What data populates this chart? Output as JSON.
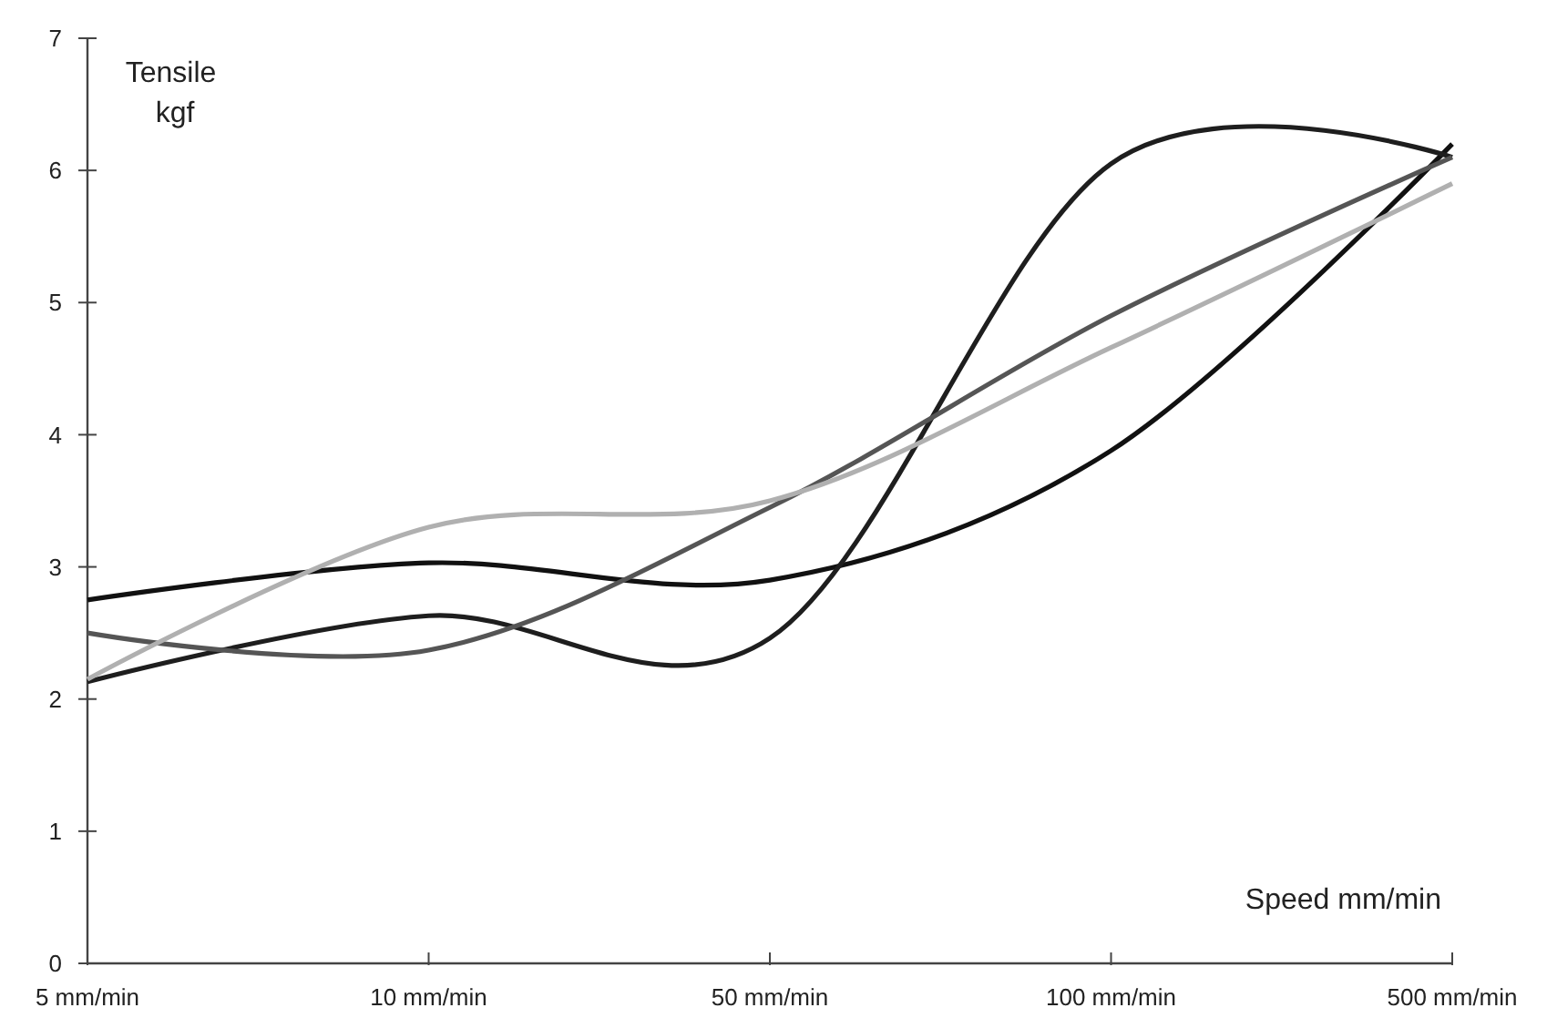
{
  "chart_data": {
    "type": "line",
    "xlabel": "Speed mm/min",
    "ylabel": "Tensile kgf",
    "categories": [
      "5 mm/min",
      "10 mm/min",
      "50 mm/min",
      "100 mm/min",
      "500 mm/min"
    ],
    "ylim": [
      0,
      7
    ],
    "yticks": [
      0,
      1,
      2,
      3,
      4,
      5,
      6,
      7
    ],
    "grid": false,
    "marker": "none",
    "line_style": "solid",
    "series": [
      {
        "color": "#111111",
        "values": [
          2.75,
          3.03,
          2.9,
          3.88,
          6.2
        ]
      },
      {
        "color": "#1e1e1e",
        "values": [
          2.13,
          2.63,
          2.46,
          6.05,
          6.1
        ]
      },
      {
        "color": "#555555",
        "values": [
          2.5,
          2.37,
          3.45,
          4.9,
          6.1
        ]
      },
      {
        "color": "#b0b0b0",
        "values": [
          2.15,
          3.3,
          3.5,
          4.66,
          5.9
        ]
      }
    ]
  }
}
